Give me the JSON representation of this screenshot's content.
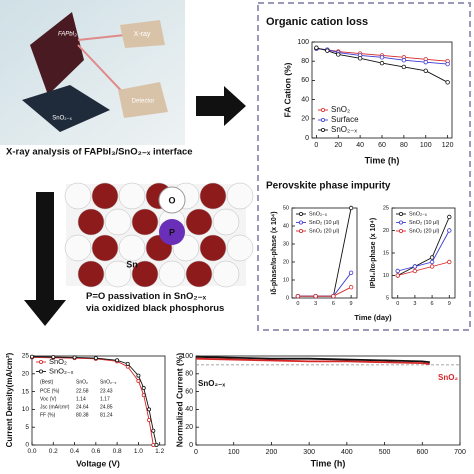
{
  "illustration": {
    "slab": "FAPbI₃",
    "beam": "X-ray",
    "detector": "Detector",
    "substrate": "SnO₂₋ₓ",
    "atom_o": "O",
    "atom_p": "P",
    "atom_sn": "Sn"
  },
  "captions": {
    "xray": "X-ray analysis of FAPbI₃/SnO₂₋ₓ interface",
    "passivation": "P=O passivation in SnO₂₋ₓ via oxidized black phosphorus"
  },
  "chart_data": [
    {
      "type": "line",
      "title": "Organic cation loss",
      "xlabel": "Time (h)",
      "ylabel": "FA Cation (%)",
      "x": [
        0,
        10,
        20,
        40,
        60,
        80,
        100,
        120
      ],
      "xlim": [
        -4,
        124
      ],
      "xticks": [
        0,
        20,
        40,
        60,
        80,
        100,
        120
      ],
      "ylim": [
        0,
        100
      ],
      "yticks": [
        0,
        20,
        40,
        60,
        80,
        100
      ],
      "legend": "lower left",
      "markers": true,
      "series": [
        {
          "name": "SnO₂",
          "color": "#d62728",
          "values": [
            93,
            92,
            90,
            88,
            86,
            84,
            82,
            80
          ]
        },
        {
          "name": "Surface",
          "color": "#3b3bd6",
          "values": [
            93,
            92,
            89,
            86,
            84,
            81,
            79,
            77
          ]
        },
        {
          "name": "SnO₂₋ₓ",
          "color": "#111111",
          "values": [
            94,
            91,
            87,
            83,
            78,
            74,
            70,
            58
          ]
        }
      ]
    },
    {
      "type": "line",
      "title": "Perovskite phase impurity",
      "xlabel": "Time (day)",
      "ylabel": "Iδ-phase/Iα-phase (x 10⁴)",
      "x": [
        0,
        3,
        6,
        9
      ],
      "xlim": [
        -1,
        10
      ],
      "xticks": [
        0,
        3,
        6,
        9
      ],
      "ylim": [
        0,
        50
      ],
      "yticks": [
        0,
        10,
        20,
        30,
        40,
        50
      ],
      "legend": "upper left",
      "markers": true,
      "series": [
        {
          "name": "SnO₂₋ₓ",
          "color": "#111111",
          "values": [
            1,
            1,
            1,
            50
          ]
        },
        {
          "name": "SnO₂ (10 μl)",
          "color": "#3b3bd6",
          "values": [
            1,
            1,
            1,
            14
          ]
        },
        {
          "name": "SnO₂ (20 μl)",
          "color": "#d62728",
          "values": [
            1,
            1,
            1,
            6
          ]
        }
      ]
    },
    {
      "type": "line",
      "ylabel": "IPbI₂/Iα-phase (x 10⁴)",
      "x": [
        0,
        3,
        6,
        9
      ],
      "xlim": [
        -1,
        10
      ],
      "xticks": [
        0,
        3,
        6,
        9
      ],
      "ylim": [
        5,
        25
      ],
      "yticks": [
        5,
        10,
        15,
        20,
        25
      ],
      "legend": "upper left",
      "markers": true,
      "series": [
        {
          "name": "SnO₂₋ₓ",
          "color": "#111111",
          "values": [
            10,
            12,
            14,
            23
          ]
        },
        {
          "name": "SnO₂ (10 μl)",
          "color": "#3b3bd6",
          "values": [
            11,
            12,
            13,
            20
          ]
        },
        {
          "name": "SnO₂ (20 μl)",
          "color": "#d62728",
          "values": [
            10,
            11,
            12,
            13
          ]
        }
      ]
    },
    {
      "type": "line",
      "xlabel": "Voltage (V)",
      "ylabel": "Current Density(mA/cm²)",
      "x": [
        0,
        0.2,
        0.4,
        0.6,
        0.8,
        0.9,
        1.0,
        1.05,
        1.1,
        1.14,
        1.17
      ],
      "xlim": [
        0,
        1.25
      ],
      "xticks": [
        {
          "value": 0,
          "label": "0.0"
        },
        0.2,
        0.4,
        0.6,
        0.8,
        {
          "value": 1,
          "label": "1.0"
        },
        1.2
      ],
      "ylim": [
        0,
        25
      ],
      "yticks": [
        0,
        5,
        10,
        15,
        20,
        25
      ],
      "legend": "upper left",
      "markers": true,
      "series": [
        {
          "name": "SnO₂",
          "color": "#d62728",
          "values": [
            24.6,
            24.5,
            24.4,
            24.2,
            23.5,
            22,
            18,
            14,
            7,
            0,
            null
          ]
        },
        {
          "name": "SnO₂₋ₓ",
          "color": "#111111",
          "values": [
            24.8,
            24.7,
            24.6,
            24.4,
            23.8,
            22.8,
            19.5,
            16,
            10,
            4,
            0
          ]
        }
      ],
      "table": {
        "header": [
          "(Best)",
          "SnO₂",
          "SnO₂₋ₓ"
        ],
        "rows": [
          [
            "PCE (%)",
            "22.58",
            "23.43"
          ],
          [
            "Voc (V)",
            "1.14",
            "1.17"
          ],
          [
            "Jsc (mA/cm²)",
            "24.64",
            "24.85"
          ],
          [
            "FF (%)",
            "80.38",
            "81.24"
          ]
        ]
      }
    },
    {
      "type": "line",
      "xlabel": "Time (h)",
      "ylabel": "Normalized Current (%)",
      "x": [
        0,
        100,
        200,
        300,
        400,
        500,
        600,
        620
      ],
      "xlim": [
        0,
        700
      ],
      "xticks": [
        0,
        100,
        200,
        300,
        400,
        500,
        600,
        700
      ],
      "ylim": [
        0,
        100
      ],
      "yticks": [
        0,
        20,
        40,
        60,
        80,
        100
      ],
      "legend": "inline",
      "markers": false,
      "reference_line": 90,
      "series": [
        {
          "name": "SnO₂₋ₓ",
          "color": "#111111",
          "values": [
            99,
            98,
            97,
            97,
            96,
            95,
            94,
            93
          ]
        },
        {
          "name": "SnO₂",
          "color": "#d62728",
          "values": [
            97,
            96,
            95,
            94,
            94,
            93,
            92,
            91
          ]
        }
      ]
    }
  ]
}
